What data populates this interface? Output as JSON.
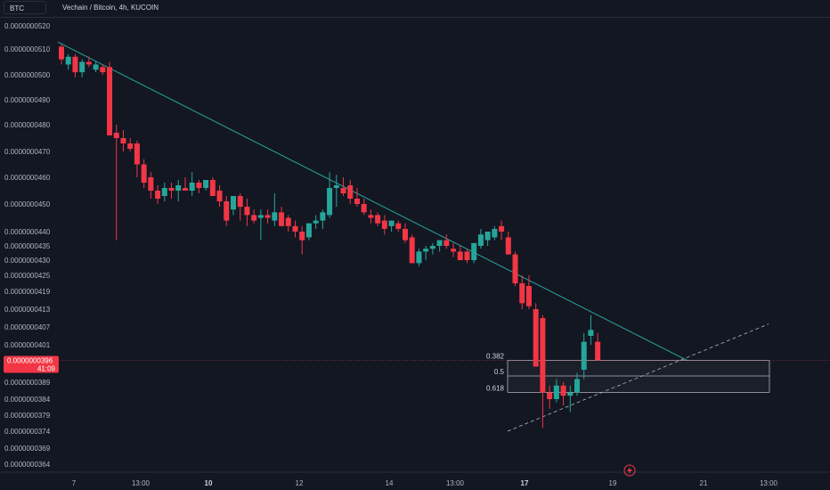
{
  "header": {
    "currency": "BTC",
    "title": "Vechain / Bitcoin, 4h, KUCOIN"
  },
  "colors": {
    "background": "#131722",
    "up": "#26a69a",
    "down": "#f23645",
    "trendline": "#26a69a"
  },
  "chart_data": {
    "type": "candlestick",
    "ylim": [
      3.62e-07,
      5.22e-07
    ],
    "y_ticks": [
      "0.0000000520",
      "0.0000000510",
      "0.0000000500",
      "0.0000000490",
      "0.0000000480",
      "0.0000000470",
      "0.0000000460",
      "0.0000000450",
      "0.0000000440",
      "0.0000000435",
      "0.0000000430",
      "0.0000000425",
      "0.0000000419",
      "0.0000000413",
      "0.0000000407",
      "0.0000000401",
      "0.0000000389",
      "0.0000000384",
      "0.0000000379",
      "0.0000000374",
      "0.0000000369",
      "0.0000000364"
    ],
    "x_ticks": [
      {
        "label": "7",
        "bold": false
      },
      {
        "label": "13:00",
        "bold": false
      },
      {
        "label": "10",
        "bold": true
      },
      {
        "label": "12",
        "bold": false
      },
      {
        "label": "14",
        "bold": false
      },
      {
        "label": "13:00",
        "bold": false
      },
      {
        "label": "17",
        "bold": true
      },
      {
        "label": "19",
        "bold": false
      },
      {
        "label": "21",
        "bold": false
      },
      {
        "label": "13:00",
        "bold": false
      }
    ],
    "candles": [
      [
        5.11e-08,
        5.12e-08,
        5.04e-08,
        5.06e-08
      ],
      [
        5.04e-08,
        5.08e-08,
        5.02e-08,
        5.07e-08
      ],
      [
        5.07e-08,
        5.08e-08,
        4.99e-08,
        5.01e-08
      ],
      [
        5.01e-08,
        5.06e-08,
        4.99e-08,
        5.05e-08
      ],
      [
        5.05e-08,
        5.07e-08,
        5.03e-08,
        5.04e-08
      ],
      [
        5.02e-08,
        5.05e-08,
        5.01e-08,
        5.04e-08
      ],
      [
        5.03e-08,
        5.04e-08,
        5e-08,
        5.01e-08
      ],
      [
        5.03e-08,
        5.05e-08,
        4.77e-08,
        4.76e-08
      ],
      [
        4.77e-08,
        4.8e-08,
        4.37e-08,
        4.75e-08
      ],
      [
        4.75e-08,
        4.78e-08,
        4.7e-08,
        4.73e-08
      ],
      [
        4.73e-08,
        4.75e-08,
        4.7e-08,
        4.71e-08
      ],
      [
        4.73e-08,
        4.74e-08,
        4.6e-08,
        4.65e-08
      ],
      [
        4.65e-08,
        4.67e-08,
        4.56e-08,
        4.58e-08
      ],
      [
        4.6e-08,
        4.62e-08,
        4.52e-08,
        4.55e-08
      ],
      [
        4.55e-08,
        4.57e-08,
        4.5e-08,
        4.52e-08
      ],
      [
        4.53e-08,
        4.58e-08,
        4.51e-08,
        4.56e-08
      ],
      [
        4.56e-08,
        4.58e-08,
        4.52e-08,
        4.55e-08
      ],
      [
        4.55e-08,
        4.59e-08,
        4.51e-08,
        4.57e-08
      ],
      [
        4.56e-08,
        4.6e-08,
        4.55e-08,
        4.55e-08
      ],
      [
        4.55e-08,
        4.62e-08,
        4.53e-08,
        4.58e-08
      ],
      [
        4.58e-08,
        4.59e-08,
        4.54e-08,
        4.56e-08
      ],
      [
        4.56e-08,
        4.58e-08,
        4.55e-08,
        4.59e-08
      ],
      [
        4.59e-08,
        4.6e-08,
        4.55e-08,
        4.53e-08
      ],
      [
        4.55e-08,
        4.57e-08,
        4.49e-08,
        4.51e-08
      ],
      [
        4.51e-08,
        4.53e-08,
        4.42e-08,
        4.44e-08
      ],
      [
        4.48e-08,
        4.51e-08,
        4.46e-08,
        4.53e-08
      ],
      [
        4.53e-08,
        4.54e-08,
        4.44e-08,
        4.49e-08
      ],
      [
        4.49e-08,
        4.52e-08,
        4.42e-08,
        4.46e-08
      ],
      [
        4.46e-08,
        4.48e-08,
        4.43e-08,
        4.44e-08
      ],
      [
        4.45e-08,
        4.48e-08,
        4.37e-08,
        4.46e-08
      ],
      [
        4.46e-08,
        4.48e-08,
        4.43e-08,
        4.45e-08
      ],
      [
        4.44e-08,
        4.54e-08,
        4.42e-08,
        4.47e-08
      ],
      [
        4.47e-08,
        4.49e-08,
        4.42e-08,
        4.42e-08
      ],
      [
        4.45e-08,
        4.46e-08,
        4.4e-08,
        4.42e-08
      ],
      [
        4.42e-08,
        4.44e-08,
        4.38e-08,
        4.4e-08
      ],
      [
        4.4e-08,
        4.42e-08,
        4.32e-08,
        4.37e-08
      ],
      [
        4.38e-08,
        4.43e-08,
        4.37e-08,
        4.43e-08
      ],
      [
        4.43e-08,
        4.46e-08,
        4.41e-08,
        4.44e-08
      ],
      [
        4.44e-08,
        4.48e-08,
        4.41e-08,
        4.47e-08
      ],
      [
        4.46e-08,
        4.62e-08,
        4.45e-08,
        4.56e-08
      ],
      [
        4.56e-08,
        4.61e-08,
        4.49e-08,
        4.57e-08
      ],
      [
        4.56e-08,
        4.6e-08,
        4.53e-08,
        4.54e-08
      ],
      [
        4.57e-08,
        4.59e-08,
        4.5e-08,
        4.52e-08
      ],
      [
        4.52e-08,
        4.56e-08,
        4.49e-08,
        4.5e-08
      ],
      [
        4.5e-08,
        4.52e-08,
        4.46e-08,
        4.47e-08
      ],
      [
        4.46e-08,
        4.48e-08,
        4.43e-08,
        4.45e-08
      ],
      [
        4.46e-08,
        4.47e-08,
        4.42e-08,
        4.43e-08
      ],
      [
        4.44e-08,
        4.46e-08,
        4.39e-08,
        4.41e-08
      ],
      [
        4.42e-08,
        4.44e-08,
        4.4e-08,
        4.44e-08
      ],
      [
        4.43e-08,
        4.44e-08,
        4.4e-08,
        4.41e-08
      ],
      [
        4.41e-08,
        4.43e-08,
        4.36e-08,
        4.37e-08
      ],
      [
        4.38e-08,
        4.39e-08,
        4.29e-08,
        4.29e-08
      ],
      [
        4.29e-08,
        4.34e-08,
        4.28e-08,
        4.33e-08
      ],
      [
        4.33e-08,
        4.35e-08,
        4.3e-08,
        4.34e-08
      ],
      [
        4.34e-08,
        4.36e-08,
        4.32e-08,
        4.35e-08
      ],
      [
        4.35e-08,
        4.37e-08,
        4.33e-08,
        4.37e-08
      ],
      [
        4.37e-08,
        4.39e-08,
        4.34e-08,
        4.35e-08
      ],
      [
        4.34e-08,
        4.36e-08,
        4.31e-08,
        4.33e-08
      ],
      [
        4.33e-08,
        4.35e-08,
        4.3e-08,
        4.3e-08
      ],
      [
        4.33e-08,
        4.34e-08,
        4.29e-08,
        4.3e-08
      ],
      [
        4.3e-08,
        4.36e-08,
        4.29e-08,
        4.36e-08
      ],
      [
        4.35e-08,
        4.41e-08,
        4.34e-08,
        4.39e-08
      ],
      [
        4.37e-08,
        4.4e-08,
        4.35e-08,
        4.4e-08
      ],
      [
        4.38e-08,
        4.42e-08,
        4.37e-08,
        4.41e-08
      ],
      [
        4.42e-08,
        4.44e-08,
        4.37e-08,
        4.4e-08
      ],
      [
        4.38e-08,
        4.4e-08,
        4.32e-08,
        4.32e-08
      ],
      [
        4.32e-08,
        4.33e-08,
        4.21e-08,
        4.22e-08
      ],
      [
        4.22e-08,
        4.25e-08,
        4.13e-08,
        4.15e-08
      ],
      [
        4.21e-08,
        4.25e-08,
        4.13e-08,
        4.14e-08
      ],
      [
        4.13e-08,
        4.15e-08,
        3.94e-08,
        3.94e-08
      ],
      [
        4.1e-08,
        4.11e-08,
        3.75e-08,
        3.86e-08
      ],
      [
        3.86e-08,
        3.88e-08,
        3.81e-08,
        3.84e-08
      ],
      [
        3.84e-08,
        3.9e-08,
        3.83e-08,
        3.88e-08
      ],
      [
        3.88e-08,
        3.89e-08,
        3.82e-08,
        3.85e-08
      ],
      [
        3.85e-08,
        3.88e-08,
        3.8e-08,
        3.86e-08
      ],
      [
        3.86e-08,
        3.92e-08,
        3.85e-08,
        3.9e-08
      ],
      [
        3.93e-08,
        4.05e-08,
        3.9e-08,
        4.02e-08
      ],
      [
        4.04e-08,
        4.11e-08,
        4.01e-08,
        4.06e-08
      ],
      [
        4.02e-08,
        4.05e-08,
        3.96e-08,
        3.96e-08
      ]
    ],
    "current_price": {
      "price": "0.0000000396",
      "countdown": "41:09",
      "value": 3.96e-08
    },
    "fib_levels": [
      {
        "label": "0.382",
        "value": 3.96e-08
      },
      {
        "label": "0.5",
        "value": 3.91e-08
      },
      {
        "label": "0.618",
        "value": 3.86e-08
      }
    ],
    "trendline": {
      "from": {
        "candle": 0,
        "price": 5.13e-08
      },
      "to": {
        "candle": 91,
        "price": 3.96e-08
      }
    },
    "projection": {
      "from": {
        "candle": 58,
        "price": 3.74e-08
      },
      "to": {
        "candle": 94,
        "price": 4.08e-08
      }
    }
  }
}
